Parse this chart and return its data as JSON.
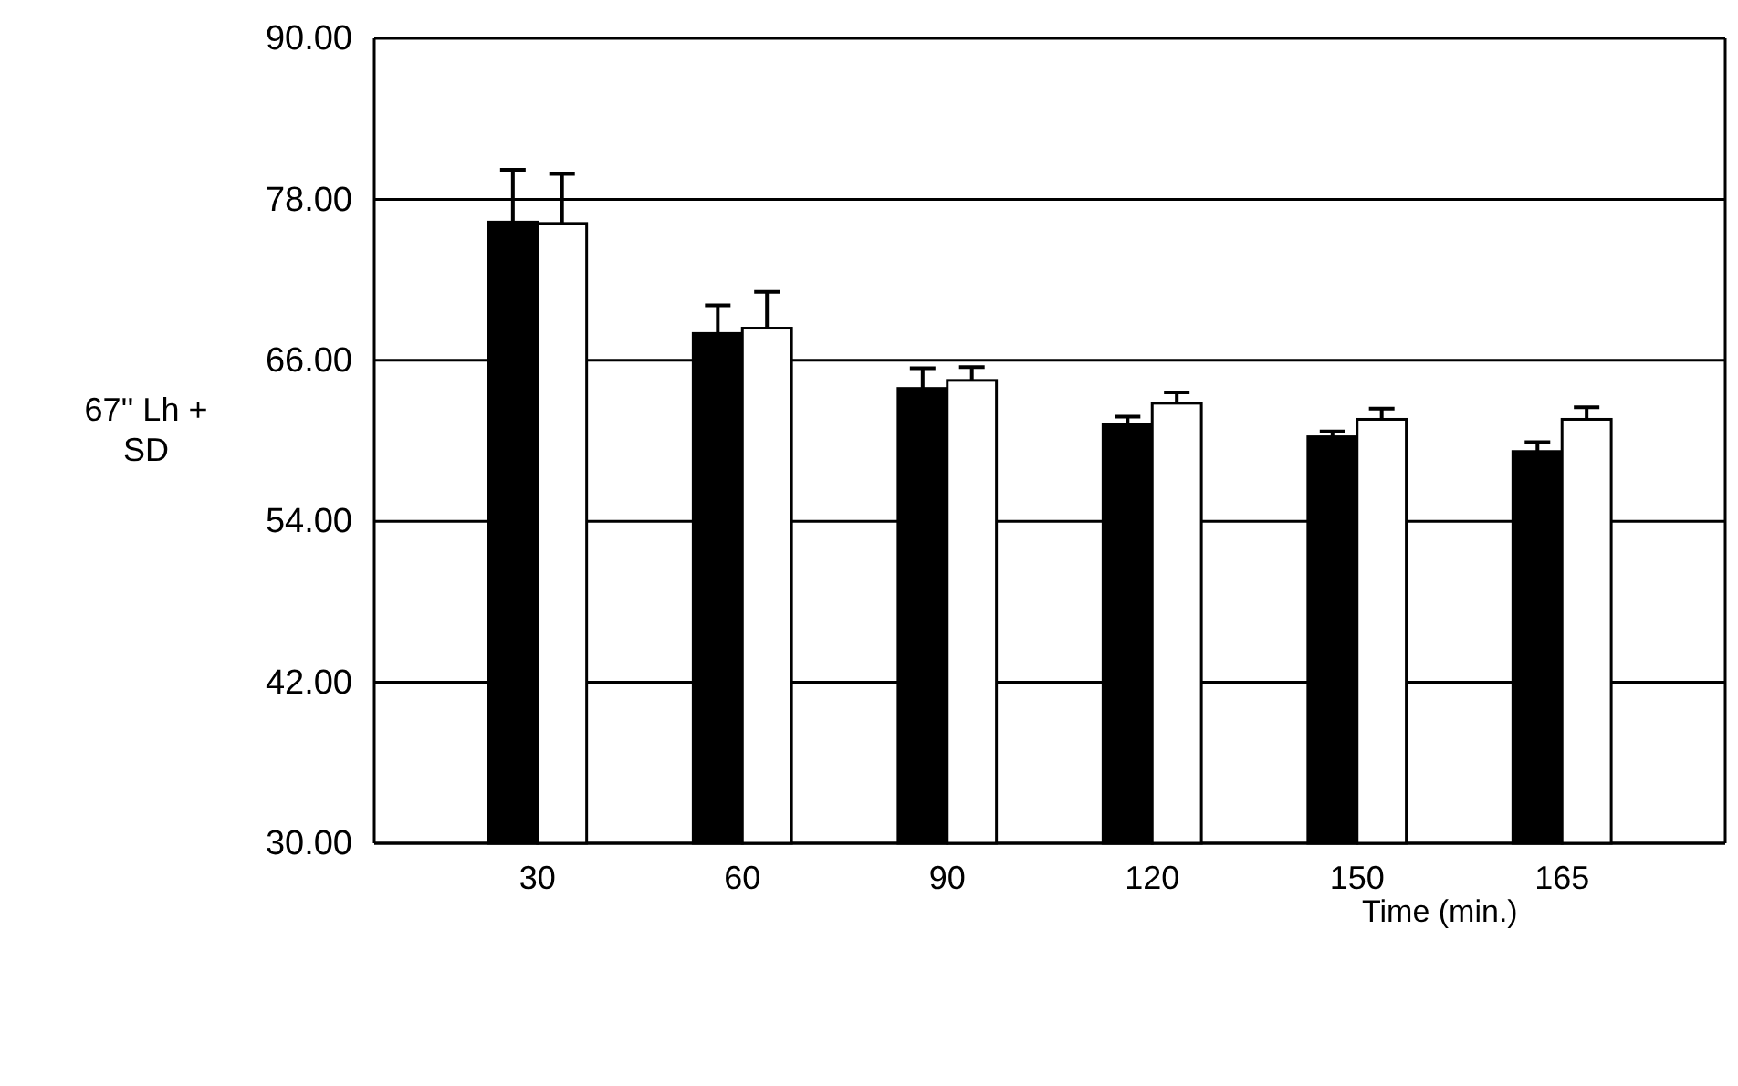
{
  "chart_data": {
    "type": "bar",
    "xlabel": "Time (min.)",
    "ylabel": "67'' Lh + SD",
    "categories": [
      "30",
      "60",
      "90",
      "120",
      "150",
      "165"
    ],
    "series": [
      {
        "color": "#000000",
        "values": [
          76.3,
          68.0,
          63.9,
          61.2,
          60.3,
          59.2
        ],
        "errors": [
          3.9,
          2.1,
          1.5,
          0.6,
          0.4,
          0.7
        ]
      },
      {
        "color": "#ffffff",
        "values": [
          76.2,
          68.4,
          64.5,
          62.8,
          61.6,
          61.6
        ],
        "errors": [
          3.7,
          2.7,
          1.0,
          0.8,
          0.8,
          0.9
        ]
      }
    ],
    "ylim": [
      30,
      90
    ],
    "yticks": [
      {
        "value": 30,
        "label": "30.00"
      },
      {
        "value": 42,
        "label": "42.00"
      },
      {
        "value": 54,
        "label": "54.00"
      },
      {
        "value": 66,
        "label": "66.00"
      },
      {
        "value": 78,
        "label": "78.00"
      },
      {
        "value": 90,
        "label": "90.00"
      }
    ],
    "grid": "y"
  }
}
